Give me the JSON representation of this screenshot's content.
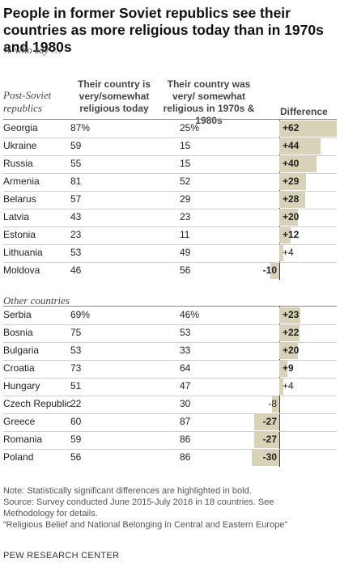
{
  "title": "People in former Soviet republics see their countries as more religious today than in 1970s and 1980s",
  "subtitle": "% who say …",
  "columns": {
    "today": "Their country is very/somewhat religious today",
    "past": "Their country was very/ somewhat religious in 1970s & 1980s",
    "difference": "Difference"
  },
  "groups": [
    "Post-Soviet republics",
    "Other countries"
  ],
  "chart_data": {
    "type": "table",
    "groups": [
      {
        "name": "Post-Soviet republics",
        "rows": [
          {
            "country": "Georgia",
            "today": "87%",
            "past": "25%",
            "diff": 62,
            "diff_label": "+62",
            "significant": true
          },
          {
            "country": "Ukraine",
            "today": "59",
            "past": "15",
            "diff": 44,
            "diff_label": "+44",
            "significant": true
          },
          {
            "country": "Russia",
            "today": "55",
            "past": "15",
            "diff": 40,
            "diff_label": "+40",
            "significant": true
          },
          {
            "country": "Armenia",
            "today": "81",
            "past": "52",
            "diff": 29,
            "diff_label": "+29",
            "significant": true
          },
          {
            "country": "Belarus",
            "today": "57",
            "past": "29",
            "diff": 28,
            "diff_label": "+28",
            "significant": true
          },
          {
            "country": "Latvia",
            "today": "43",
            "past": "23",
            "diff": 20,
            "diff_label": "+20",
            "significant": true
          },
          {
            "country": "Estonia",
            "today": "23",
            "past": "11",
            "diff": 12,
            "diff_label": "+12",
            "significant": true
          },
          {
            "country": "Lithuania",
            "today": "53",
            "past": "49",
            "diff": 4,
            "diff_label": "+4",
            "significant": false
          },
          {
            "country": "Moldova",
            "today": "46",
            "past": "56",
            "diff": -10,
            "diff_label": "-10",
            "significant": true
          }
        ]
      },
      {
        "name": "Other countries",
        "rows": [
          {
            "country": "Serbia",
            "today": "69%",
            "past": "46%",
            "diff": 23,
            "diff_label": "+23",
            "significant": true
          },
          {
            "country": "Bosnia",
            "today": "75",
            "past": "53",
            "diff": 22,
            "diff_label": "+22",
            "significant": true
          },
          {
            "country": "Bulgaria",
            "today": "53",
            "past": "33",
            "diff": 20,
            "diff_label": "+20",
            "significant": true
          },
          {
            "country": "Croatia",
            "today": "73",
            "past": "64",
            "diff": 9,
            "diff_label": "+9",
            "significant": true
          },
          {
            "country": "Hungary",
            "today": "51",
            "past": "47",
            "diff": 4,
            "diff_label": "+4",
            "significant": false
          },
          {
            "country": "Czech Republic",
            "today": "22",
            "past": "30",
            "diff": -8,
            "diff_label": "-8",
            "significant": false
          },
          {
            "country": "Greece",
            "today": "60",
            "past": "87",
            "diff": -27,
            "diff_label": "-27",
            "significant": true
          },
          {
            "country": "Romania",
            "today": "59",
            "past": "86",
            "diff": -27,
            "diff_label": "-27",
            "significant": true
          },
          {
            "country": "Poland",
            "today": "56",
            "past": "86",
            "diff": -30,
            "diff_label": "-30",
            "significant": true
          }
        ]
      }
    ]
  },
  "notes": [
    "Note: Statistically significant differences are highlighted in bold.",
    "Source: Survey conducted June 2015-July 2016 in 18 countries. See Methodology for details.",
    "“Religious Belief and National Belonging in Central and Eastern Europe”"
  ],
  "footer": "PEW RESEARCH CENTER",
  "colors": {
    "bar": "#d8d2b8",
    "zero_line": "#333333"
  }
}
